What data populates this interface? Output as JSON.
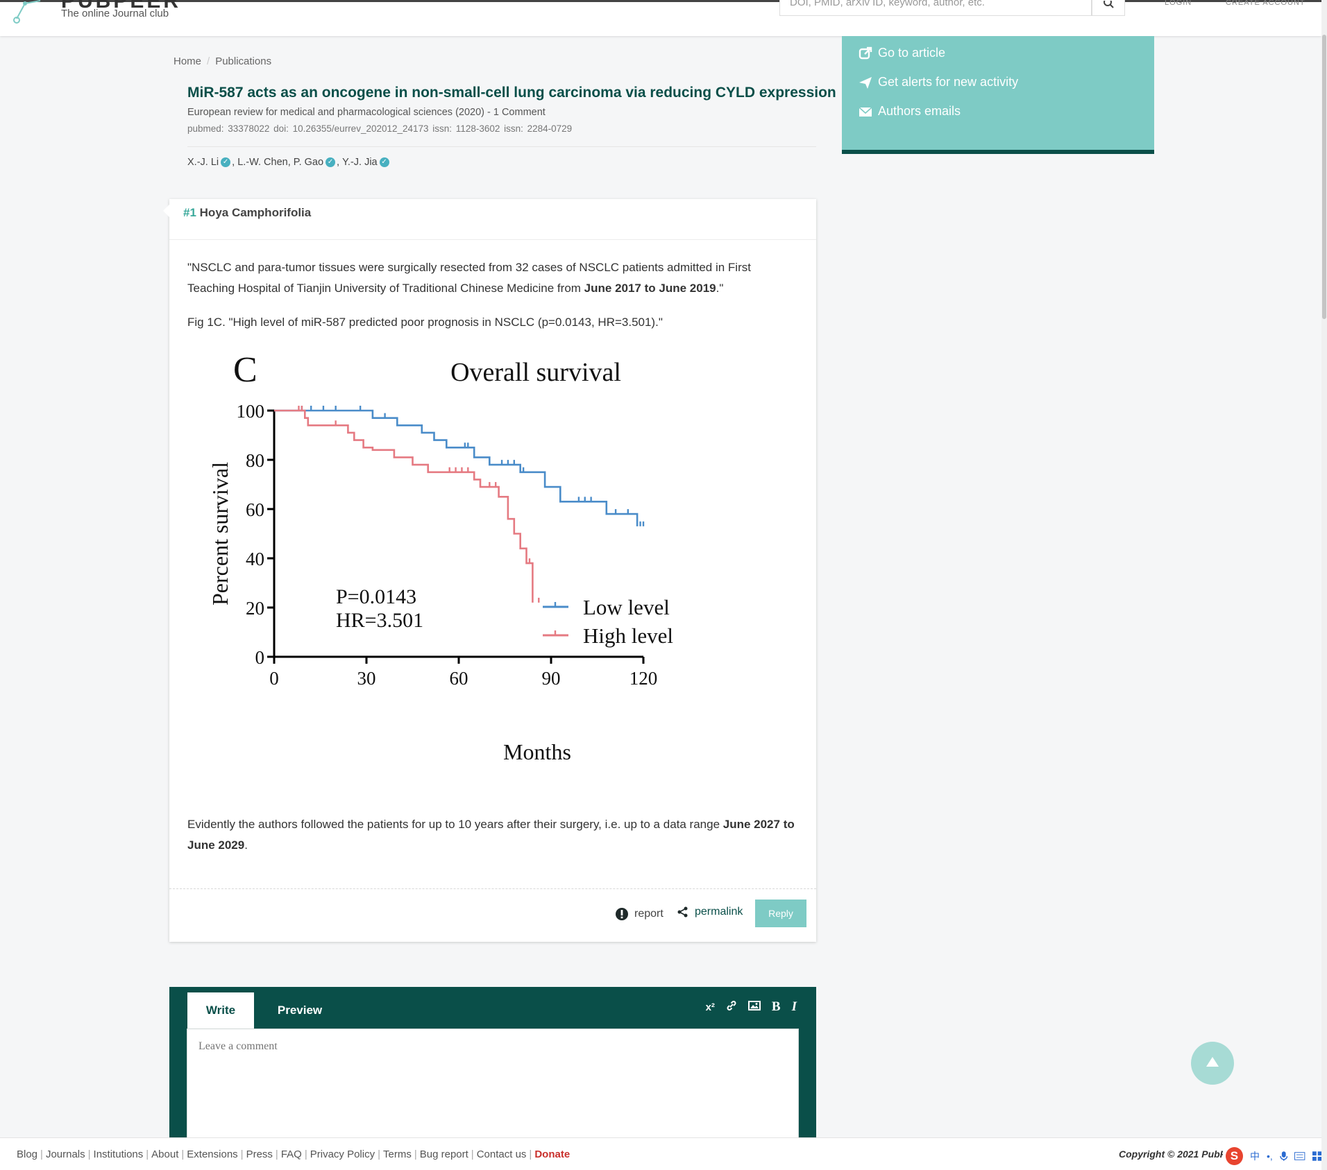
{
  "header": {
    "brand": "PUBPEER",
    "tagline": "The online Journal club",
    "search_placeholder": "DOI, PMID, arXiv ID, keyword, author, etc.",
    "login": "LOGIN",
    "create_account": "CREATE ACCOUNT"
  },
  "breadcrumb": {
    "home": "Home",
    "separator": "/",
    "current": "Publications"
  },
  "publication": {
    "title": "MiR-587 acts as an oncogene in non-small-cell lung carcinoma via reducing CYLD expression",
    "journal_line": "European review for medical and pharmacological sciences (2020) - 1 Comment",
    "ids": "pubmed: 33378022  doi: 10.26355/eurrev_202012_24173  issn: 1128-3602  issn: 2284-0729",
    "authors": [
      "X.-J. Li",
      "L.-W. Chen, P. Gao",
      "Y.-J. Jia"
    ],
    "author_separator": ","
  },
  "side_panel": {
    "go_to_article": "Go to article",
    "alerts": "Get alerts for new activity",
    "authors_emails": "Authors emails"
  },
  "comment": {
    "number": "#1",
    "author": "Hoya Camphorifolia",
    "p1_text": "\"NSCLC and para-tumor tissues were surgically resected from 32 cases of NSCLC patients admitted in First Teaching Hospital of Tianjin University of Traditional Chinese Medicine from ",
    "p1_bold": "June 2017 to June 2019",
    "p1_end": ".\"",
    "p2": "Fig 1C. \"High level of miR-587 predicted poor prognosis in NSCLC (p=0.0143, HR=3.501).\"",
    "p3_text": "Evidently the authors followed the patients for up to 10 years after their surgery, i.e. up to a data range ",
    "p3_bold": "June 2027 to June 2029",
    "p3_end": ".",
    "report": "report",
    "permalink": "permalink",
    "reply": "Reply"
  },
  "chart_data": {
    "type": "line",
    "panel_label": "C",
    "title": "Overall survival",
    "xlabel": "Months",
    "ylabel": "Percent survival",
    "xlim": [
      0,
      120
    ],
    "ylim": [
      0,
      100
    ],
    "xticks": [
      0,
      30,
      60,
      90,
      120
    ],
    "yticks": [
      0,
      20,
      40,
      60,
      80,
      100
    ],
    "annotation_lines": [
      "P=0.0143",
      "HR=3.501"
    ],
    "legend_position": "bottom-right",
    "series": [
      {
        "name": "Low level",
        "color": "#4a8cc9",
        "steps": [
          [
            0,
            100
          ],
          [
            32,
            100
          ],
          [
            32,
            97
          ],
          [
            40,
            97
          ],
          [
            40,
            94
          ],
          [
            48,
            94
          ],
          [
            48,
            91
          ],
          [
            52,
            91
          ],
          [
            52,
            88
          ],
          [
            56,
            88
          ],
          [
            56,
            85
          ],
          [
            65,
            85
          ],
          [
            65,
            81
          ],
          [
            70,
            81
          ],
          [
            70,
            78
          ],
          [
            80,
            78
          ],
          [
            80,
            75
          ],
          [
            88,
            75
          ],
          [
            88,
            69
          ],
          [
            93,
            69
          ],
          [
            93,
            63
          ],
          [
            108,
            63
          ],
          [
            108,
            58
          ],
          [
            118,
            58
          ],
          [
            118,
            53
          ]
        ],
        "censor": [
          9,
          12,
          16,
          20,
          28,
          36,
          62,
          63,
          74,
          76,
          78,
          81,
          99,
          101,
          103,
          111,
          115,
          119,
          120
        ]
      },
      {
        "name": "High level",
        "color": "#e57a82",
        "steps": [
          [
            0,
            100
          ],
          [
            10,
            100
          ],
          [
            10,
            97
          ],
          [
            11,
            97
          ],
          [
            11,
            94
          ],
          [
            24,
            94
          ],
          [
            24,
            91
          ],
          [
            26,
            91
          ],
          [
            26,
            88
          ],
          [
            29,
            88
          ],
          [
            29,
            85
          ],
          [
            32,
            85
          ],
          [
            32,
            84
          ],
          [
            39,
            84
          ],
          [
            39,
            81
          ],
          [
            45,
            81
          ],
          [
            45,
            78
          ],
          [
            50,
            78
          ],
          [
            50,
            75
          ],
          [
            65,
            75
          ],
          [
            65,
            72
          ],
          [
            67,
            72
          ],
          [
            67,
            69
          ],
          [
            73,
            69
          ],
          [
            73,
            65
          ],
          [
            76,
            65
          ],
          [
            76,
            56
          ],
          [
            78,
            56
          ],
          [
            78,
            50
          ],
          [
            80,
            50
          ],
          [
            80,
            44
          ],
          [
            82,
            44
          ],
          [
            82,
            38
          ],
          [
            84,
            38
          ],
          [
            84,
            22
          ]
        ],
        "censor": [
          8,
          9,
          20,
          57,
          59,
          61,
          63,
          70,
          72,
          83,
          86
        ]
      }
    ]
  },
  "editor": {
    "tab_write": "Write",
    "tab_preview": "Preview",
    "tool_superscript": "x²",
    "tool_bold": "B",
    "tool_italic": "I",
    "placeholder": "Leave a comment"
  },
  "footer": {
    "links": [
      "Blog",
      "Journals",
      "Institutions",
      "About",
      "Extensions",
      "Press",
      "FAQ",
      "Privacy Policy",
      "Terms",
      "Bug report",
      "Contact us"
    ],
    "donate": "Donate",
    "copyright": "Copyright © 2021 PubPeer Foundation"
  },
  "ime": {
    "logo": "S",
    "lang": "中"
  }
}
